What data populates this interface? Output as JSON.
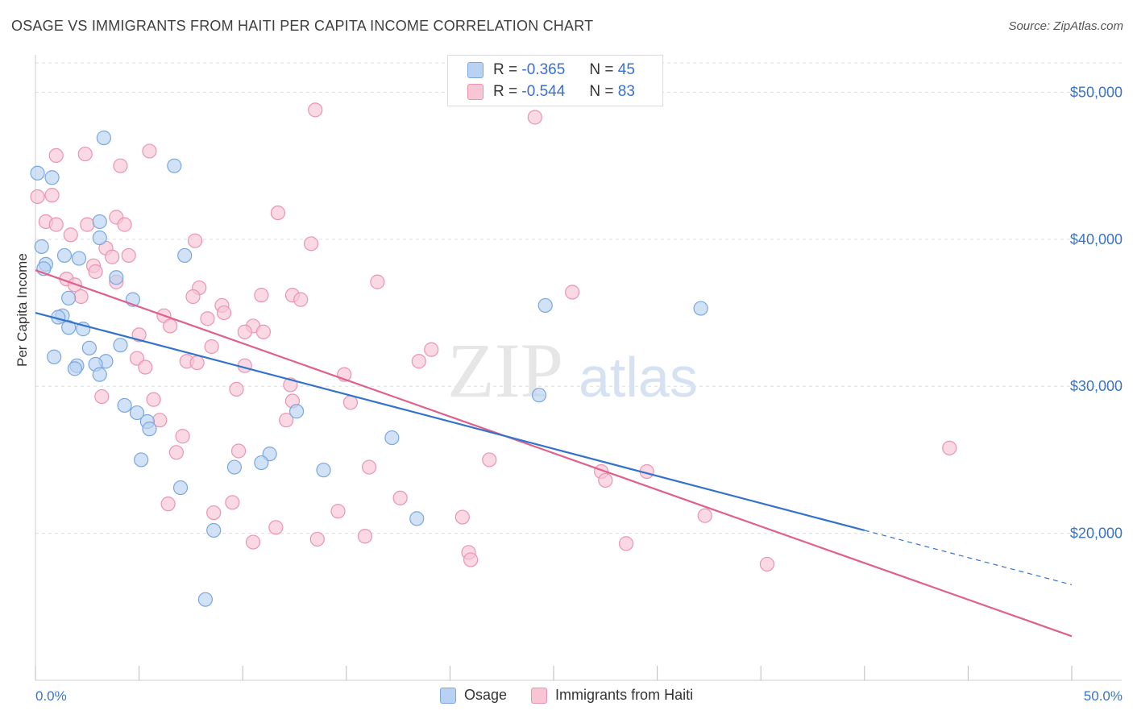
{
  "title": "OSAGE VS IMMIGRANTS FROM HAITI PER CAPITA INCOME CORRELATION CHART",
  "source": "Source: ZipAtlas.com",
  "watermark": {
    "zip": "ZIP",
    "atlas": "atlas"
  },
  "legend_stats": [
    {
      "r_label": "R =",
      "r_value": "-0.365",
      "n_label": "N =",
      "n_value": "45"
    },
    {
      "r_label": "R =",
      "r_value": "-0.544",
      "n_label": "N =",
      "n_value": "83"
    }
  ],
  "colors": {
    "osage_fill": "#b9d2f3",
    "osage_stroke": "#7aa7e0",
    "osage_line": "#3373cc",
    "haiti_fill": "#f8c5d5",
    "haiti_stroke": "#eb94b0",
    "haiti_line": "#e0608b",
    "tick_label": "#3a75c4",
    "grid": "#dddddd"
  },
  "chart_data": {
    "type": "scatter",
    "title": "OSAGE VS IMMIGRANTS FROM HAITI PER CAPITA INCOME CORRELATION CHART",
    "xlabel": "",
    "ylabel": "Per Capita Income",
    "xlim": [
      0,
      50
    ],
    "ylim": [
      10000,
      52000
    ],
    "x_tick_labels": [
      "0.0%",
      "50.0%"
    ],
    "y_ticks": [
      20000,
      30000,
      40000,
      50000
    ],
    "y_tick_labels": [
      "$20,000",
      "$30,000",
      "$40,000",
      "$50,000"
    ],
    "grid": true,
    "legend": "bottom-center",
    "series": [
      {
        "name": "Osage",
        "trend": {
          "x0": 0,
          "y0": 35000,
          "x1": 40,
          "y1": 20200,
          "dashed_to_x": 50,
          "dashed_to_y": 16500
        },
        "points": [
          [
            0.1,
            44500
          ],
          [
            0.8,
            44200
          ],
          [
            3.3,
            46900
          ],
          [
            6.7,
            45000
          ],
          [
            3.1,
            41200
          ],
          [
            3.1,
            40100
          ],
          [
            7.2,
            38900
          ],
          [
            0.3,
            39500
          ],
          [
            2.1,
            38700
          ],
          [
            1.4,
            38900
          ],
          [
            0.5,
            38300
          ],
          [
            0.4,
            38000
          ],
          [
            3.9,
            37400
          ],
          [
            1.6,
            36000
          ],
          [
            4.7,
            35900
          ],
          [
            1.3,
            34800
          ],
          [
            1.1,
            34700
          ],
          [
            1.6,
            34000
          ],
          [
            2.3,
            33900
          ],
          [
            4.1,
            32800
          ],
          [
            2.6,
            32600
          ],
          [
            0.9,
            32000
          ],
          [
            3.4,
            31700
          ],
          [
            2.9,
            31500
          ],
          [
            2.0,
            31400
          ],
          [
            1.9,
            31200
          ],
          [
            3.1,
            30800
          ],
          [
            4.3,
            28700
          ],
          [
            4.9,
            28200
          ],
          [
            5.4,
            27600
          ],
          [
            5.5,
            27100
          ],
          [
            12.6,
            28300
          ],
          [
            24.6,
            35500
          ],
          [
            32.1,
            35300
          ],
          [
            24.3,
            29400
          ],
          [
            17.2,
            26500
          ],
          [
            5.1,
            25000
          ],
          [
            11.3,
            25400
          ],
          [
            10.9,
            24800
          ],
          [
            9.6,
            24500
          ],
          [
            13.9,
            24300
          ],
          [
            7.0,
            23100
          ],
          [
            18.4,
            21000
          ],
          [
            8.6,
            20200
          ],
          [
            8.2,
            15500
          ]
        ]
      },
      {
        "name": "Immigrants from Haiti",
        "trend": {
          "x0": 0,
          "y0": 37900,
          "x1": 50,
          "y1": 13000
        },
        "points": [
          [
            0.1,
            42900
          ],
          [
            13.5,
            48800
          ],
          [
            24.1,
            48300
          ],
          [
            1.0,
            45700
          ],
          [
            2.4,
            45800
          ],
          [
            5.5,
            46000
          ],
          [
            4.1,
            45000
          ],
          [
            0.8,
            43000
          ],
          [
            0.5,
            41200
          ],
          [
            11.7,
            41800
          ],
          [
            3.9,
            41500
          ],
          [
            2.5,
            41000
          ],
          [
            4.3,
            41000
          ],
          [
            1.7,
            40300
          ],
          [
            7.7,
            39900
          ],
          [
            13.3,
            39700
          ],
          [
            3.4,
            39400
          ],
          [
            3.7,
            38800
          ],
          [
            4.5,
            38900
          ],
          [
            2.8,
            38200
          ],
          [
            2.9,
            37800
          ],
          [
            1.5,
            37300
          ],
          [
            3.9,
            37100
          ],
          [
            16.5,
            37100
          ],
          [
            1.9,
            36900
          ],
          [
            7.9,
            36700
          ],
          [
            2.2,
            36100
          ],
          [
            7.6,
            36100
          ],
          [
            10.9,
            36200
          ],
          [
            12.4,
            36200
          ],
          [
            12.8,
            35900
          ],
          [
            25.9,
            36400
          ],
          [
            9.0,
            35500
          ],
          [
            9.1,
            35000
          ],
          [
            8.3,
            34600
          ],
          [
            6.2,
            34800
          ],
          [
            6.5,
            34100
          ],
          [
            10.5,
            34100
          ],
          [
            10.1,
            33700
          ],
          [
            11.0,
            33700
          ],
          [
            5.0,
            33500
          ],
          [
            8.5,
            32700
          ],
          [
            19.1,
            32500
          ],
          [
            4.9,
            31900
          ],
          [
            7.3,
            31700
          ],
          [
            7.8,
            31600
          ],
          [
            5.3,
            31300
          ],
          [
            10.1,
            31400
          ],
          [
            18.5,
            31700
          ],
          [
            14.9,
            30800
          ],
          [
            12.3,
            30100
          ],
          [
            9.7,
            29800
          ],
          [
            5.7,
            29100
          ],
          [
            3.2,
            29300
          ],
          [
            12.4,
            29000
          ],
          [
            15.2,
            28900
          ],
          [
            6.0,
            27700
          ],
          [
            12.1,
            27700
          ],
          [
            7.1,
            26600
          ],
          [
            6.8,
            25500
          ],
          [
            9.8,
            25600
          ],
          [
            44.1,
            25800
          ],
          [
            21.9,
            25000
          ],
          [
            16.1,
            24500
          ],
          [
            27.3,
            24200
          ],
          [
            27.5,
            23600
          ],
          [
            29.5,
            24200
          ],
          [
            17.6,
            22400
          ],
          [
            6.4,
            22000
          ],
          [
            9.5,
            22100
          ],
          [
            8.6,
            21400
          ],
          [
            14.6,
            21500
          ],
          [
            32.3,
            21200
          ],
          [
            20.6,
            21100
          ],
          [
            11.6,
            20400
          ],
          [
            15.9,
            19800
          ],
          [
            13.6,
            19600
          ],
          [
            10.5,
            19400
          ],
          [
            28.5,
            19300
          ],
          [
            20.9,
            18700
          ],
          [
            21.0,
            18200
          ],
          [
            35.3,
            17900
          ],
          [
            1.0,
            41000
          ]
        ]
      }
    ]
  }
}
